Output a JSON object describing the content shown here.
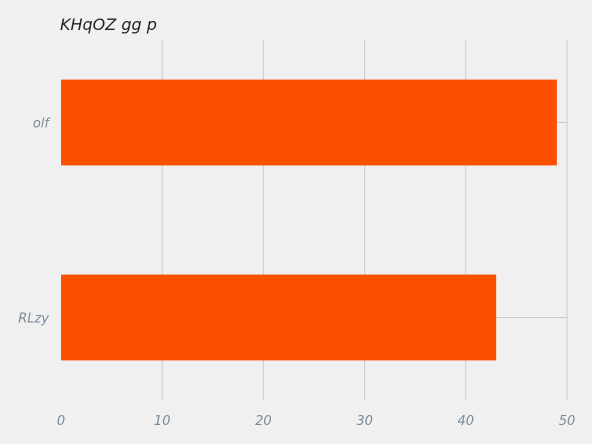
{
  "chart_data": {
    "type": "bar",
    "orientation": "horizontal",
    "title": "KHqOZ    gg p",
    "xlabel": "",
    "ylabel": "",
    "categories": [
      "olf",
      "RLzy"
    ],
    "values": [
      49,
      43
    ],
    "xlim": [
      0,
      50
    ],
    "xticks": [
      0,
      10,
      20,
      30,
      40,
      50
    ],
    "grid": true,
    "colors": {
      "bar": "#fc4f00",
      "grid": "#cbcbcb",
      "background": "#f0f0f0",
      "tick_text": "#7a8a99"
    }
  }
}
